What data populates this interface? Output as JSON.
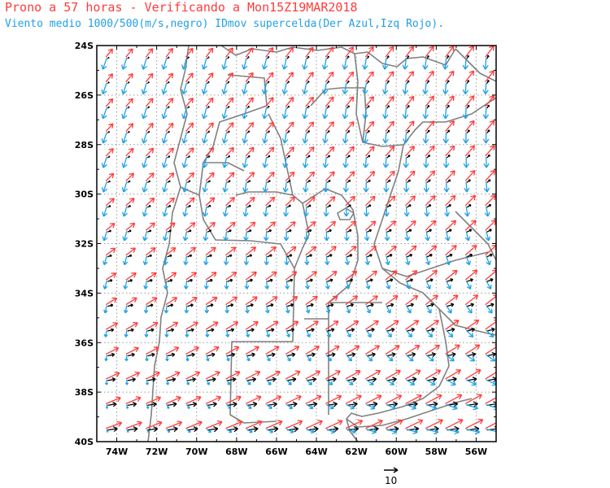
{
  "header": {
    "title": "Prono a 57 horas - Verificando a Mon15Z19MAR2018",
    "subtitle": "Viento medio 1000/500(m/s,negro) IDmov supercelda(Der Azul,Izq Rojo)."
  },
  "colors": {
    "mean_wind": "#000000",
    "right_mover": "#1fa0e6",
    "left_mover": "#ff3b3b",
    "borders": "#808080",
    "grid": "#9a9a9a"
  },
  "chart_data": {
    "type": "wind-vector-map",
    "lon_range": [
      -75,
      -55
    ],
    "lat_range": [
      -40,
      -24
    ],
    "lat_labels": [
      "24S",
      "26S",
      "28S",
      "30S",
      "32S",
      "34S",
      "36S",
      "38S",
      "40S"
    ],
    "lon_labels": [
      "74W",
      "72W",
      "70W",
      "68W",
      "66W",
      "64W",
      "62W",
      "60W",
      "58W",
      "56W"
    ],
    "reference_vector": {
      "label": "10",
      "magnitude": 10
    },
    "grid": true
  }
}
